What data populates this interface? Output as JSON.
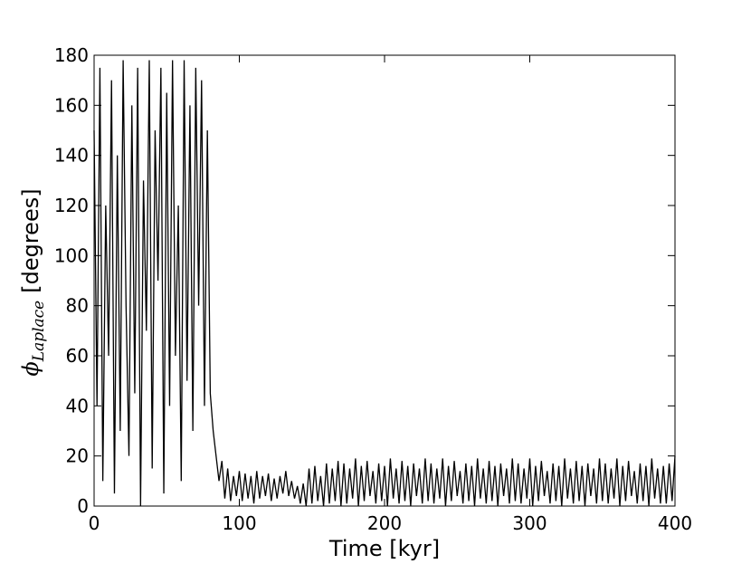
{
  "chart_data": {
    "type": "line",
    "xlabel": "Time [kyr]",
    "ylabel_symbol": "ϕ",
    "ylabel_subscript": "Laplace",
    "ylabel_unit": "[degrees]",
    "xlim": [
      0,
      400
    ],
    "xticks": [
      0,
      100,
      200,
      300,
      400
    ],
    "ylim": [
      0,
      180
    ],
    "yticks": [
      0,
      20,
      40,
      60,
      80,
      100,
      120,
      140,
      160,
      180
    ],
    "grid": false,
    "series": [
      {
        "color": "#000000",
        "x": [
          0,
          2,
          4,
          6,
          8,
          10,
          12,
          14,
          16,
          18,
          20,
          22,
          24,
          26,
          28,
          30,
          32,
          34,
          36,
          38,
          40,
          42,
          44,
          46,
          48,
          50,
          52,
          54,
          56,
          58,
          60,
          62,
          64,
          66,
          68,
          70,
          72,
          74,
          76,
          78,
          80,
          82,
          84,
          86,
          88,
          90,
          92,
          94,
          96,
          98,
          100,
          102,
          104,
          106,
          108,
          110,
          112,
          114,
          116,
          118,
          120,
          122,
          124,
          126,
          128,
          130,
          132,
          134,
          136,
          138,
          140,
          142,
          144,
          146,
          148,
          150,
          152,
          154,
          156,
          158,
          160,
          162,
          164,
          166,
          168,
          170,
          172,
          174,
          176,
          178,
          180,
          182,
          184,
          186,
          188,
          190,
          192,
          194,
          196,
          198,
          200,
          202,
          204,
          206,
          208,
          210,
          212,
          214,
          216,
          218,
          220,
          222,
          224,
          226,
          228,
          230,
          232,
          234,
          236,
          238,
          240,
          242,
          244,
          246,
          248,
          250,
          252,
          254,
          256,
          258,
          260,
          262,
          264,
          266,
          268,
          270,
          272,
          274,
          276,
          278,
          280,
          282,
          284,
          286,
          288,
          290,
          292,
          294,
          296,
          298,
          300,
          302,
          304,
          306,
          308,
          310,
          312,
          314,
          316,
          318,
          320,
          322,
          324,
          326,
          328,
          330,
          332,
          334,
          336,
          338,
          340,
          342,
          344,
          346,
          348,
          350,
          352,
          354,
          356,
          358,
          360,
          362,
          364,
          366,
          368,
          370,
          372,
          374,
          376,
          378,
          380,
          382,
          384,
          386,
          388,
          390,
          392,
          394,
          396,
          398,
          400
        ],
        "values": [
          150,
          40,
          175,
          10,
          120,
          60,
          170,
          5,
          140,
          30,
          178,
          80,
          20,
          160,
          45,
          175,
          0,
          130,
          70,
          178,
          15,
          150,
          90,
          175,
          5,
          165,
          40,
          178,
          60,
          120,
          10,
          178,
          50,
          160,
          30,
          175,
          80,
          170,
          40,
          150,
          45,
          30,
          20,
          10,
          18,
          3,
          15,
          2,
          12,
          4,
          14,
          2,
          13,
          3,
          12,
          1,
          14,
          3,
          12,
          4,
          13,
          2,
          11,
          3,
          12,
          5,
          14,
          4,
          10,
          3,
          8,
          1,
          9,
          0,
          15,
          1,
          16,
          2,
          12,
          0,
          17,
          1,
          15,
          2,
          18,
          0,
          17,
          1,
          15,
          3,
          19,
          0,
          16,
          2,
          18,
          4,
          14,
          1,
          17,
          2,
          16,
          0,
          19,
          3,
          15,
          1,
          18,
          2,
          16,
          0,
          17,
          4,
          15,
          1,
          19,
          2,
          17,
          1,
          15,
          3,
          19,
          0,
          16,
          2,
          18,
          4,
          14,
          1,
          17,
          2,
          16,
          0,
          19,
          3,
          15,
          1,
          18,
          2,
          16,
          0,
          17,
          4,
          15,
          1,
          19,
          2,
          17,
          1,
          15,
          3,
          19,
          0,
          16,
          2,
          18,
          4,
          14,
          1,
          17,
          2,
          16,
          0,
          19,
          3,
          15,
          1,
          18,
          2,
          16,
          0,
          17,
          4,
          15,
          1,
          19,
          2,
          17,
          1,
          15,
          3,
          19,
          0,
          16,
          2,
          18,
          4,
          14,
          1,
          17,
          2,
          16,
          0,
          19,
          3,
          15,
          1,
          16,
          1,
          17,
          2,
          20
        ]
      }
    ]
  }
}
